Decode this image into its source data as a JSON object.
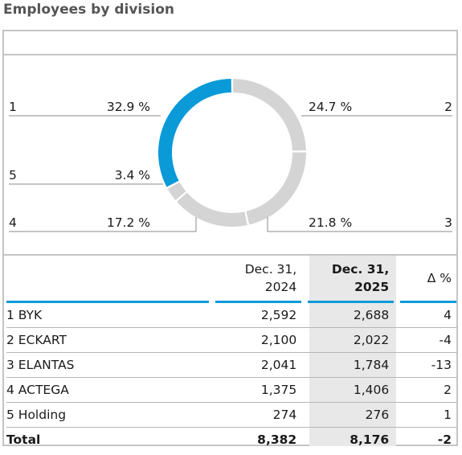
{
  "title": "Employees by division",
  "chart_data": {
    "type": "pie",
    "variant": "donut",
    "segments": [
      {
        "id": "1",
        "value": 32.9,
        "label": "32.9 %",
        "color": "#0a9ad8"
      },
      {
        "id": "2",
        "value": 24.7,
        "label": "24.7 %",
        "color": "#d4d4d4"
      },
      {
        "id": "3",
        "value": 21.8,
        "label": "21.8 %",
        "color": "#d4d4d4"
      },
      {
        "id": "4",
        "value": 17.2,
        "label": "17.2 %",
        "color": "#d4d4d4"
      },
      {
        "id": "5",
        "value": 3.4,
        "label": "3.4 %",
        "color": "#d4d4d4"
      }
    ]
  },
  "table": {
    "headers": {
      "col1_line1": "Dec. 31,",
      "col1_line2": "2024",
      "col2_line1": "Dec. 31,",
      "col2_line2": "2025",
      "col3": "Δ %"
    },
    "rows": [
      {
        "name": "1 BYK",
        "v2024": "2,592",
        "v2025": "2,688",
        "delta": "4"
      },
      {
        "name": "2 ECKART",
        "v2024": "2,100",
        "v2025": "2,022",
        "delta": "-4"
      },
      {
        "name": "3 ELANTAS",
        "v2024": "2,041",
        "v2025": "1,784",
        "delta": "-13"
      },
      {
        "name": "4 ACTEGA",
        "v2024": "1,375",
        "v2025": "1,406",
        "delta": "2"
      },
      {
        "name": "5 Holding",
        "v2024": "274",
        "v2025": "276",
        "delta": "1"
      }
    ],
    "total": {
      "name": "Total",
      "v2024": "8,382",
      "v2025": "8,176",
      "delta": "-2"
    }
  }
}
